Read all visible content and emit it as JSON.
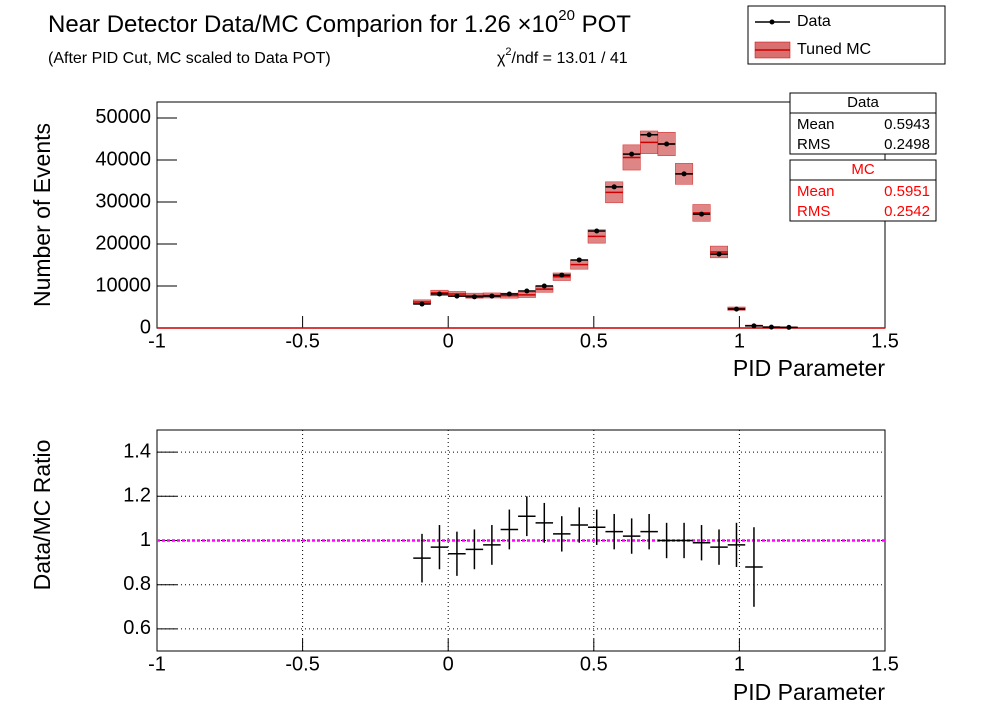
{
  "header": {
    "title": "Near Detector Data/MC Comparion for 1.26 ×10",
    "title_exponent": "20",
    "title_suffix": " POT",
    "subtitle": "(After PID Cut, MC scaled to Data POT)",
    "chi2_symbol": "χ",
    "chi2_exponent": "2",
    "chi2_text": "/ndf = 13.01 / 41"
  },
  "chart_data": [
    {
      "type": "histogram-errorbar",
      "x_label": "PID Parameter",
      "y_label": "Number of Events",
      "x": [
        -0.09,
        -0.03,
        0.03,
        0.09,
        0.15,
        0.21,
        0.27,
        0.33,
        0.39,
        0.45,
        0.51,
        0.57,
        0.63,
        0.69,
        0.75,
        0.81,
        0.87,
        0.93,
        0.99,
        1.05,
        1.11,
        1.17
      ],
      "series": [
        {
          "name": "Data",
          "color": "#000000",
          "values": [
            5700,
            8100,
            7600,
            7400,
            7600,
            8100,
            8800,
            10000,
            12600,
            16200,
            23100,
            33600,
            41400,
            46000,
            43800,
            36700,
            27100,
            17600,
            4500,
            500,
            200,
            150
          ]
        },
        {
          "name": "Tuned MC",
          "color": "#cc0000",
          "band_color": "#d97070",
          "values": [
            6200,
            8350,
            8100,
            7700,
            7750,
            7700,
            7900,
            9250,
            12200,
            15100,
            21800,
            32300,
            40600,
            44200,
            43800,
            36700,
            27400,
            18100,
            4600,
            570,
            200,
            150
          ],
          "errors": [
            500,
            650,
            600,
            600,
            600,
            600,
            650,
            750,
            900,
            1100,
            1600,
            2500,
            3000,
            2700,
            2800,
            2500,
            2000,
            1400,
            400,
            100,
            50,
            40
          ]
        }
      ],
      "xlim": [
        -1,
        1.5
      ],
      "xticks": [
        -1,
        -0.5,
        0,
        0.5,
        1,
        1.5
      ],
      "ylim": [
        0,
        53800
      ],
      "yticks": [
        0,
        10000,
        20000,
        30000,
        40000,
        50000
      ],
      "grid": false,
      "stats": [
        {
          "title": "Data",
          "color": "#000000",
          "rows": [
            [
              "Mean",
              0.5943
            ],
            [
              "RMS",
              0.2498
            ]
          ]
        },
        {
          "title": "MC",
          "color": "#ff0000",
          "rows": [
            [
              "Mean",
              0.5951
            ],
            [
              "RMS",
              0.2542
            ]
          ]
        }
      ]
    },
    {
      "type": "ratio-errorbar",
      "x_label": "PID Parameter",
      "y_label": "Data/MC Ratio",
      "x": [
        -0.09,
        -0.03,
        0.03,
        0.09,
        0.15,
        0.21,
        0.27,
        0.33,
        0.39,
        0.45,
        0.51,
        0.57,
        0.63,
        0.69,
        0.75,
        0.81,
        0.87,
        0.93,
        0.99,
        1.05
      ],
      "values": [
        0.92,
        0.97,
        0.94,
        0.96,
        0.98,
        1.05,
        1.11,
        1.08,
        1.03,
        1.07,
        1.06,
        1.04,
        1.02,
        1.04,
        1.0,
        1.0,
        0.99,
        0.97,
        0.98,
        0.88
      ],
      "errors": [
        0.11,
        0.1,
        0.1,
        0.09,
        0.09,
        0.09,
        0.09,
        0.09,
        0.08,
        0.08,
        0.08,
        0.08,
        0.08,
        0.08,
        0.08,
        0.08,
        0.08,
        0.08,
        0.1,
        0.18
      ],
      "color": "#000000",
      "reference_line": 1,
      "reference_color": "#ff00ff",
      "xlim": [
        -1,
        1.5
      ],
      "xticks": [
        -1,
        -0.5,
        0,
        0.5,
        1,
        1.5
      ],
      "ylim": [
        0.5,
        1.5
      ],
      "yticks": [
        0.6,
        0.8,
        1,
        1.2,
        1.4
      ],
      "grid": true
    }
  ]
}
